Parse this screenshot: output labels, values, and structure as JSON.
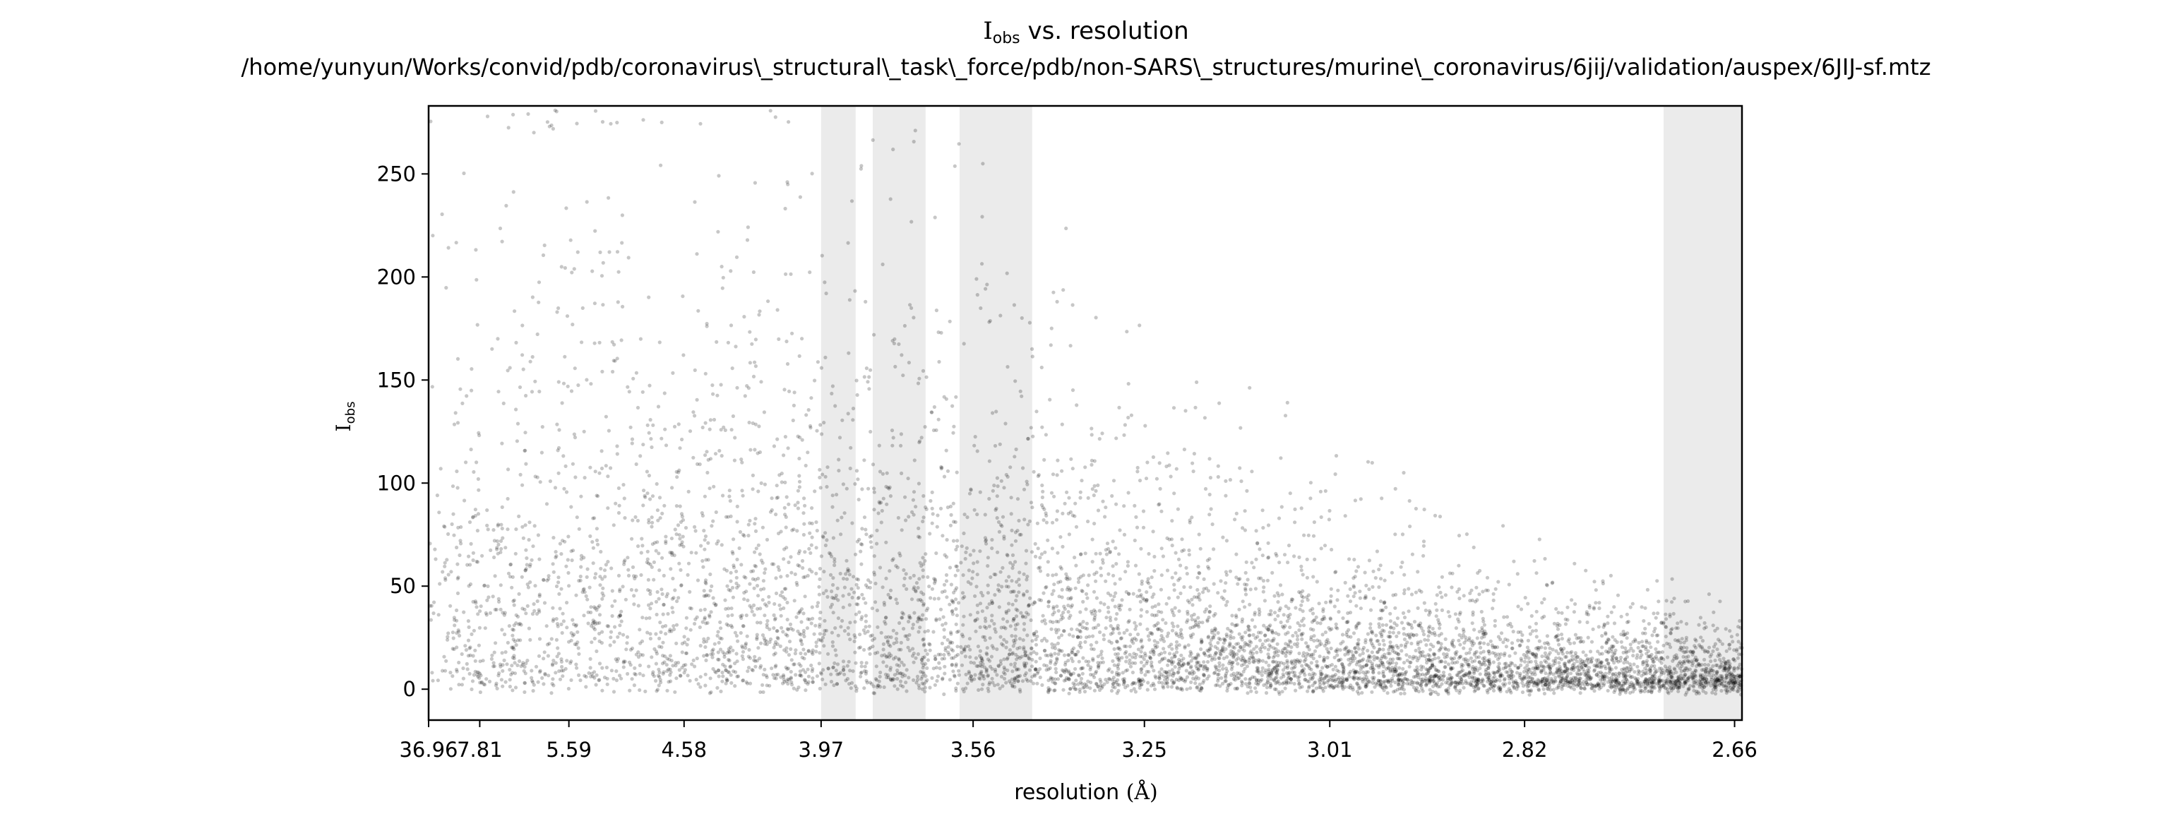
{
  "chart_data": {
    "type": "scatter",
    "title_main": "I",
    "title_sub": "obs",
    "title_rest": " vs. resolution",
    "subtitle": "/home/yunyun/Works/convid/pdb/coronavirus\\_structural\\_task\\_force/pdb/non-SARS\\_structures/murine\\_coronavirus/6jij/validation/auspex/6JIJ-sf.mtz",
    "xlabel_text": "resolution ",
    "xlabel_unit": "(Å)",
    "ylabel_main": "I",
    "ylabel_sub": "obs",
    "x_scale": "reciprocal-cubed resolution (1/d³)",
    "x_ticks": [
      "36.96",
      "7.81",
      "5.59",
      "4.58",
      "3.97",
      "3.56",
      "3.25",
      "3.01",
      "2.82",
      "2.66"
    ],
    "y_ticks": [
      "0",
      "50",
      "100",
      "150",
      "200",
      "250"
    ],
    "xlim": [
      36.96,
      2.655
    ],
    "ylim": [
      -15,
      283
    ],
    "grid": false,
    "point_color": "#000000",
    "point_opacity": 0.22,
    "ice_ring_color": "#ebebeb",
    "ice_rings": [
      {
        "from": 3.97,
        "to": 3.86
      },
      {
        "from": 3.81,
        "to": 3.67
      },
      {
        "from": 3.59,
        "to": 3.44
      },
      {
        "from": 2.71,
        "to": 2.655
      }
    ],
    "envelope": [
      {
        "resolution": 20.0,
        "value": 280
      },
      {
        "resolution": 7.81,
        "value": 280
      },
      {
        "resolution": 5.59,
        "value": 280
      },
      {
        "resolution": 4.58,
        "value": 265
      },
      {
        "resolution": 3.97,
        "value": 250
      },
      {
        "resolution": 3.56,
        "value": 210
      },
      {
        "resolution": 3.25,
        "value": 150
      },
      {
        "resolution": 3.01,
        "value": 100
      },
      {
        "resolution": 2.82,
        "value": 60
      },
      {
        "resolution": 2.66,
        "value": 40
      }
    ]
  }
}
